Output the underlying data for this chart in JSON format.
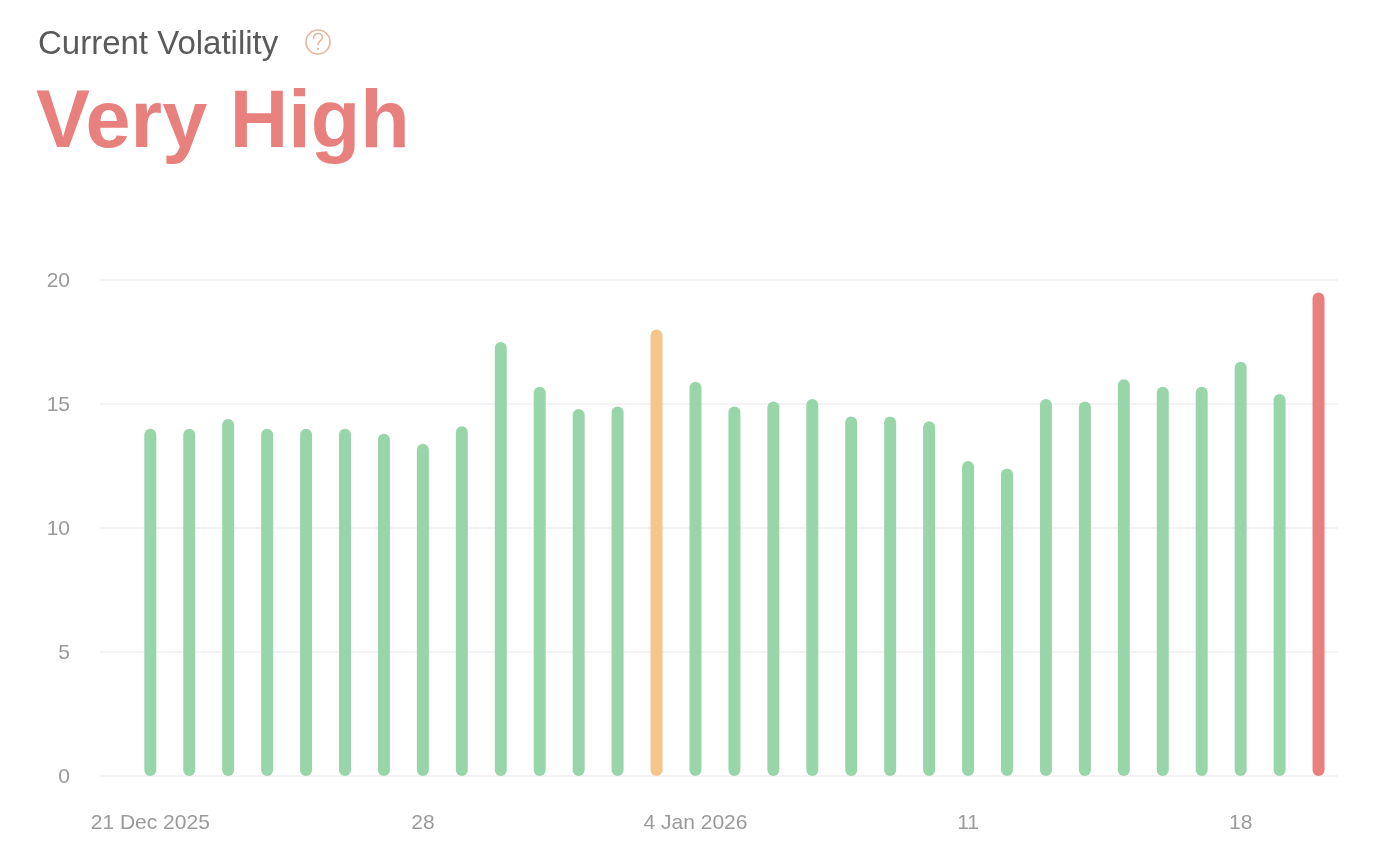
{
  "chart_data": {
    "type": "bar",
    "title": "Current Volatility",
    "subtitle": "Very High",
    "x": [
      "2025-12-21",
      "2025-12-22",
      "2025-12-23",
      "2025-12-24",
      "2025-12-25",
      "2025-12-26",
      "2025-12-27",
      "2025-12-28",
      "2025-12-29",
      "2025-12-30",
      "2025-12-31",
      "2026-01-01",
      "2026-01-02",
      "2026-01-03",
      "2026-01-04",
      "2026-01-05",
      "2026-01-06",
      "2026-01-07",
      "2026-01-08",
      "2026-01-09",
      "2026-01-10",
      "2026-01-11",
      "2026-01-12",
      "2026-01-13",
      "2026-01-14",
      "2026-01-15",
      "2026-01-16",
      "2026-01-17",
      "2026-01-18",
      "2026-01-19",
      "2026-01-20"
    ],
    "values": [
      14.0,
      14.0,
      14.4,
      14.0,
      14.0,
      14.0,
      13.8,
      13.4,
      14.1,
      17.5,
      15.7,
      14.8,
      14.9,
      18.0,
      15.9,
      14.9,
      15.1,
      15.2,
      14.5,
      14.5,
      14.3,
      12.7,
      12.4,
      15.2,
      15.1,
      16.0,
      15.7,
      15.7,
      16.7,
      15.4,
      19.5
    ],
    "colors": [
      "#98d6a9",
      "#98d6a9",
      "#98d6a9",
      "#98d6a9",
      "#98d6a9",
      "#98d6a9",
      "#98d6a9",
      "#98d6a9",
      "#98d6a9",
      "#98d6a9",
      "#98d6a9",
      "#98d6a9",
      "#98d6a9",
      "#f4c68c",
      "#98d6a9",
      "#98d6a9",
      "#98d6a9",
      "#98d6a9",
      "#98d6a9",
      "#98d6a9",
      "#98d6a9",
      "#98d6a9",
      "#98d6a9",
      "#98d6a9",
      "#98d6a9",
      "#98d6a9",
      "#98d6a9",
      "#98d6a9",
      "#98d6a9",
      "#98d6a9",
      "#e8817e"
    ],
    "xlim": [
      "2025-12-19T17:00",
      "2026-01-20T12:00"
    ],
    "xticks": [
      {
        "value": "2025-12-21",
        "label": "21 Dec 2025"
      },
      {
        "value": "2025-12-28",
        "label": "28"
      },
      {
        "value": "2026-01-04",
        "label": "4 Jan 2026"
      },
      {
        "value": "2026-01-11",
        "label": "11"
      },
      {
        "value": "2026-01-18",
        "label": "18"
      }
    ],
    "ylim": [
      0,
      20
    ],
    "yticks": [
      0,
      5,
      10,
      15,
      20
    ],
    "grid": "y"
  }
}
